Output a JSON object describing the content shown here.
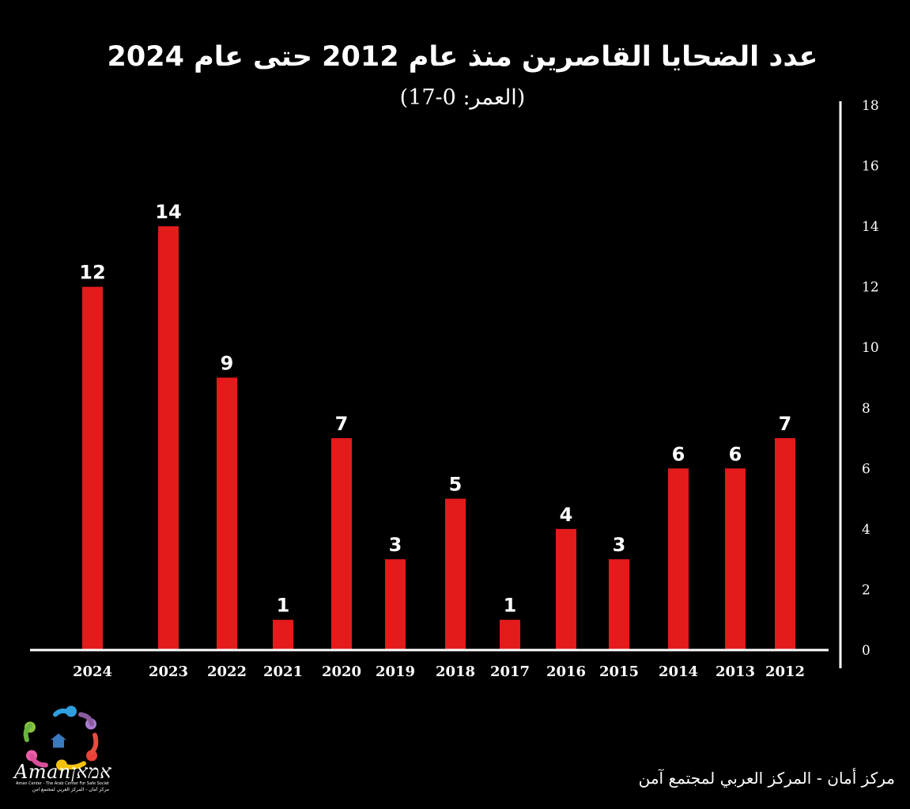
{
  "chart_data": {
    "type": "bar",
    "title": "عدد الضحايا القاصرين منذ عام 2012 حتى عام 2024",
    "subtitle": "(العمر: 0-17)",
    "categories": [
      "2024",
      "2023",
      "2022",
      "2021",
      "2020",
      "2019",
      "2018",
      "2017",
      "2016",
      "2015",
      "2014",
      "2013",
      "2012"
    ],
    "values": [
      12,
      14,
      9,
      1,
      7,
      3,
      5,
      1,
      4,
      3,
      6,
      6,
      7
    ],
    "ylim": [
      0,
      18
    ],
    "yticks": [
      0,
      2,
      4,
      6,
      8,
      10,
      12,
      14,
      16,
      18
    ],
    "yaxis_position": "right",
    "xlabel": "",
    "ylabel": "",
    "grid": false,
    "bar_color": "#e31b1b"
  },
  "logo": {
    "wordmark": "Amanאמאן",
    "caption_en": "Aman Center - The Arab Center For Safe Society",
    "caption_ar": "مركز أمان - المركز العربي لمجتمع آمن"
  },
  "footer": {
    "credit": "مركز أمان - المركز العربي لمجتمع آمن"
  }
}
